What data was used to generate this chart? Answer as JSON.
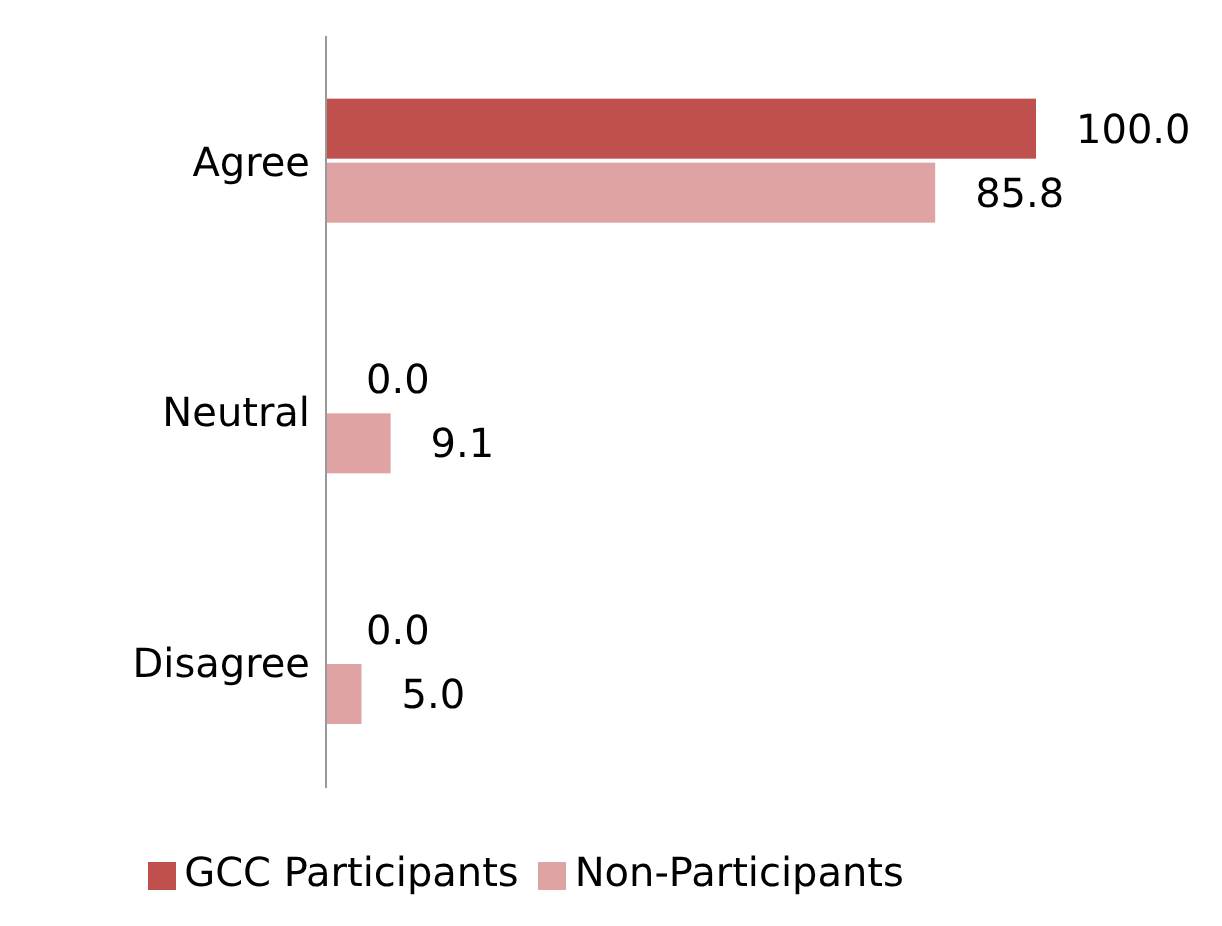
{
  "chart_data": {
    "type": "bar",
    "orientation": "horizontal",
    "categories": [
      "Agree",
      "Neutral",
      "Disagree"
    ],
    "series": [
      {
        "name": "GCC Participants",
        "color": "#c0504d",
        "values": [
          100.0,
          0.0,
          0.0
        ],
        "value_labels": [
          "100.0",
          "0.0",
          "0.0"
        ]
      },
      {
        "name": "Non-Participants",
        "color": "#e0a3a3",
        "values": [
          85.8,
          9.1,
          5.0
        ],
        "value_labels": [
          "85.8",
          "9.1",
          "5.0"
        ]
      }
    ],
    "legend": "bottom"
  }
}
